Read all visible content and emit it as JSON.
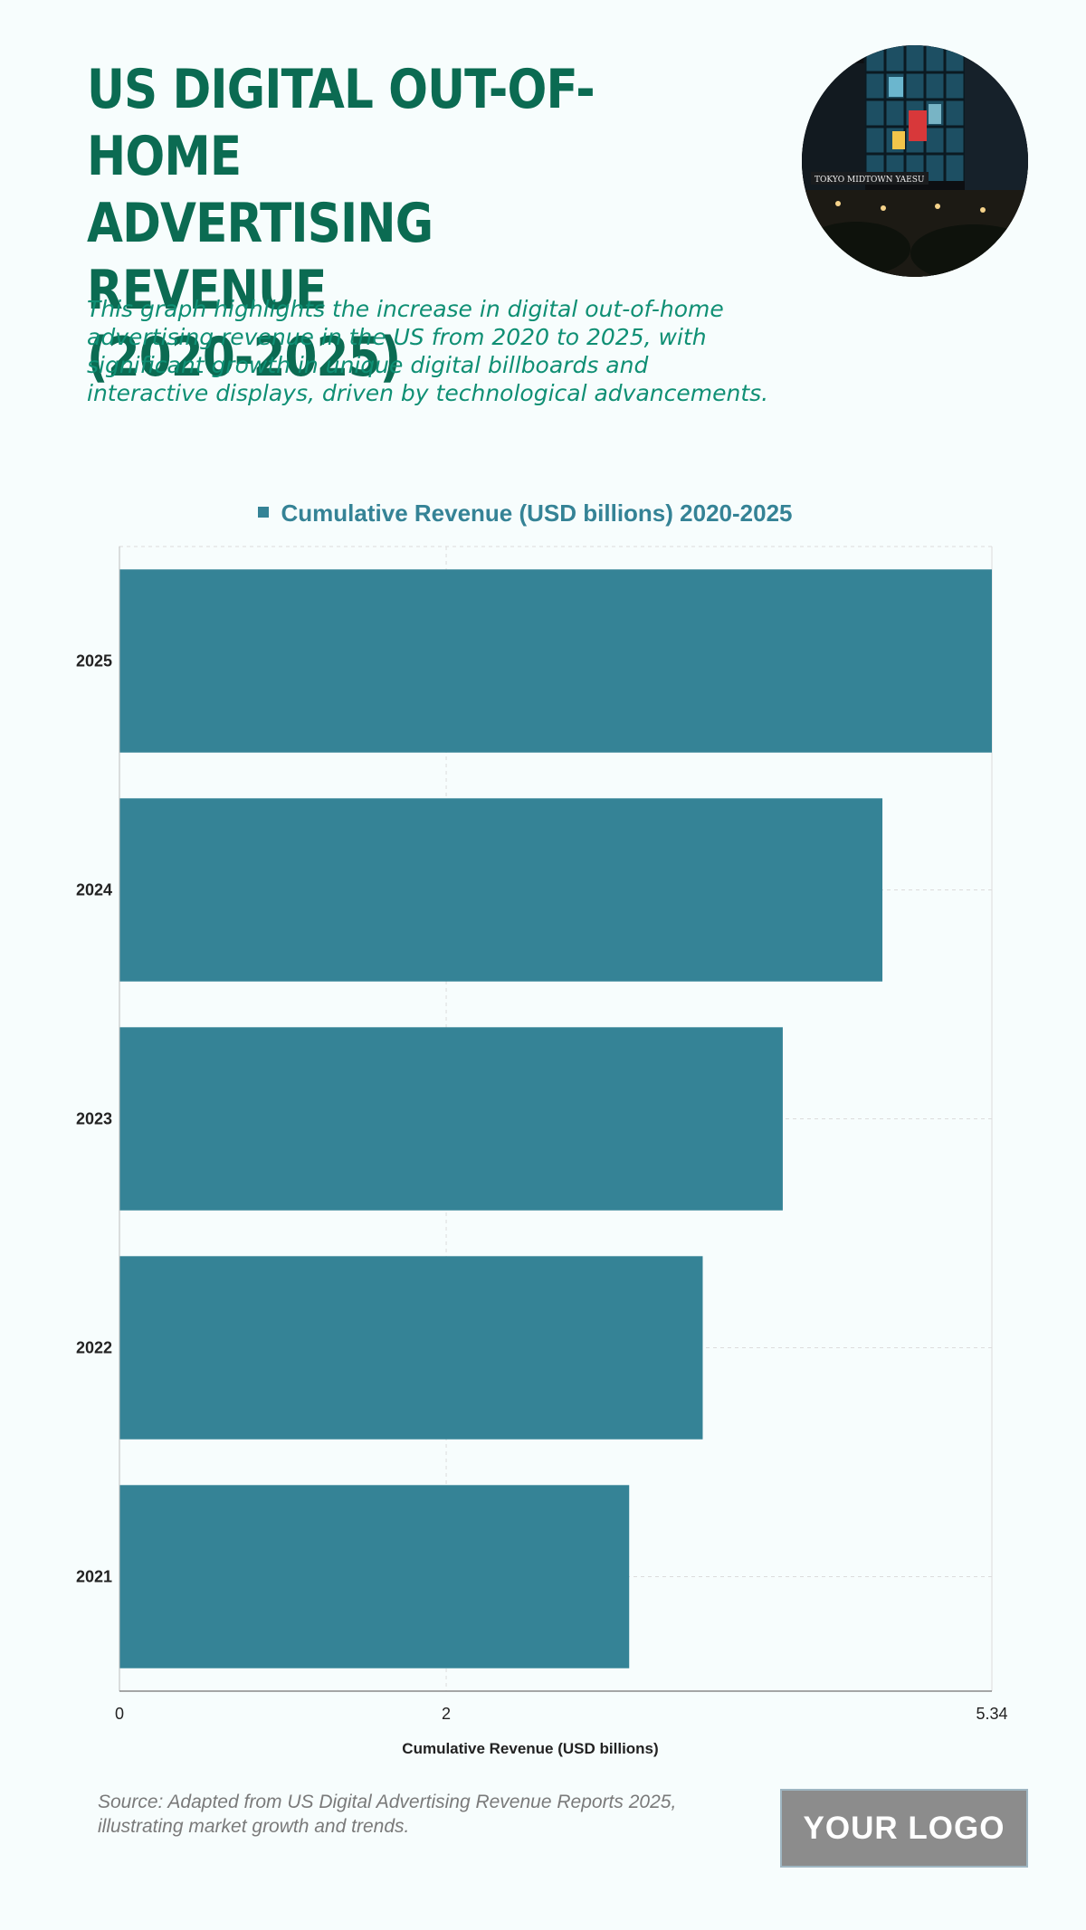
{
  "header": {
    "title": "US DIGITAL OUT-OF-HOME\nADVERTISING REVENUE\n(2020-2025)",
    "subtitle": "This graph highlights the increase in digital out-of-home advertising revenue in the US from 2020 to 2025, with significant growth in unique digital billboards and interactive displays, driven by technological advancements."
  },
  "photo": {
    "sign_text": "TOKYO MIDTOWN YAESU"
  },
  "chart_data": {
    "type": "bar",
    "orientation": "horizontal",
    "categories": [
      "2025",
      "2024",
      "2023",
      "2022",
      "2021"
    ],
    "series": [
      {
        "name": "Cumulative Revenue (USD billions) 2020-2025",
        "values": [
          5.34,
          4.67,
          4.06,
          3.57,
          3.12
        ]
      }
    ],
    "xlabel": "Cumulative Revenue (USD billions)",
    "ylabel": "",
    "xlim": [
      0,
      5.34
    ],
    "x_ticks": [
      "0",
      "2",
      "5.34"
    ],
    "grid": true,
    "legend_position": "top-center",
    "bar_color": "#358396"
  },
  "footer": {
    "source": "Source: Adapted from US Digital Advertising Revenue Reports 2025, illustrating market growth and trends.",
    "logo": "YOUR LOGO"
  }
}
